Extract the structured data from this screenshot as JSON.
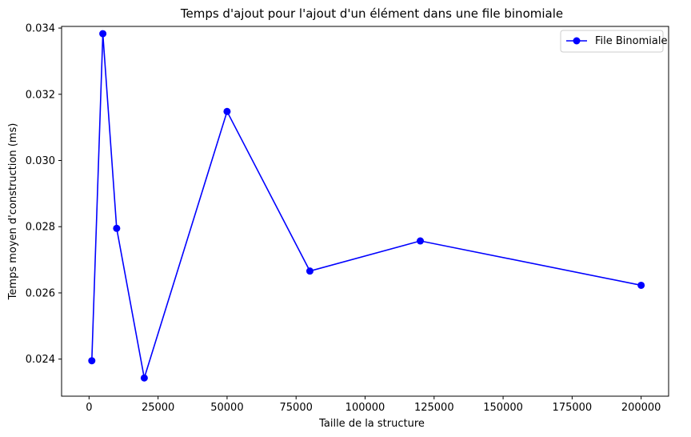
{
  "chart_data": {
    "type": "line",
    "title": "Temps d'ajout pour l'ajout d'un élément dans une file binomiale",
    "xlabel": "Taille de la structure",
    "ylabel": "Temps moyen d'construction (ms)",
    "xlim": [
      -9950,
      209950
    ],
    "ylim": [
      0.02288,
      0.03405
    ],
    "xticks": [
      0,
      25000,
      50000,
      75000,
      100000,
      125000,
      150000,
      175000,
      200000
    ],
    "yticks": [
      0.024,
      0.026,
      0.028,
      0.03,
      0.032,
      0.034
    ],
    "ytick_labels": [
      "0.024",
      "0.026",
      "0.028",
      "0.030",
      "0.032",
      "0.034"
    ],
    "grid": false,
    "legend_position": "top-right",
    "series": [
      {
        "name": "File Binomiale",
        "color": "#0000ff",
        "marker": "circle",
        "x": [
          1000,
          5000,
          10000,
          20000,
          50000,
          80000,
          120000,
          200000
        ],
        "y": [
          0.02395,
          0.03383,
          0.02795,
          0.02343,
          0.03148,
          0.02666,
          0.02757,
          0.02623
        ]
      }
    ]
  }
}
